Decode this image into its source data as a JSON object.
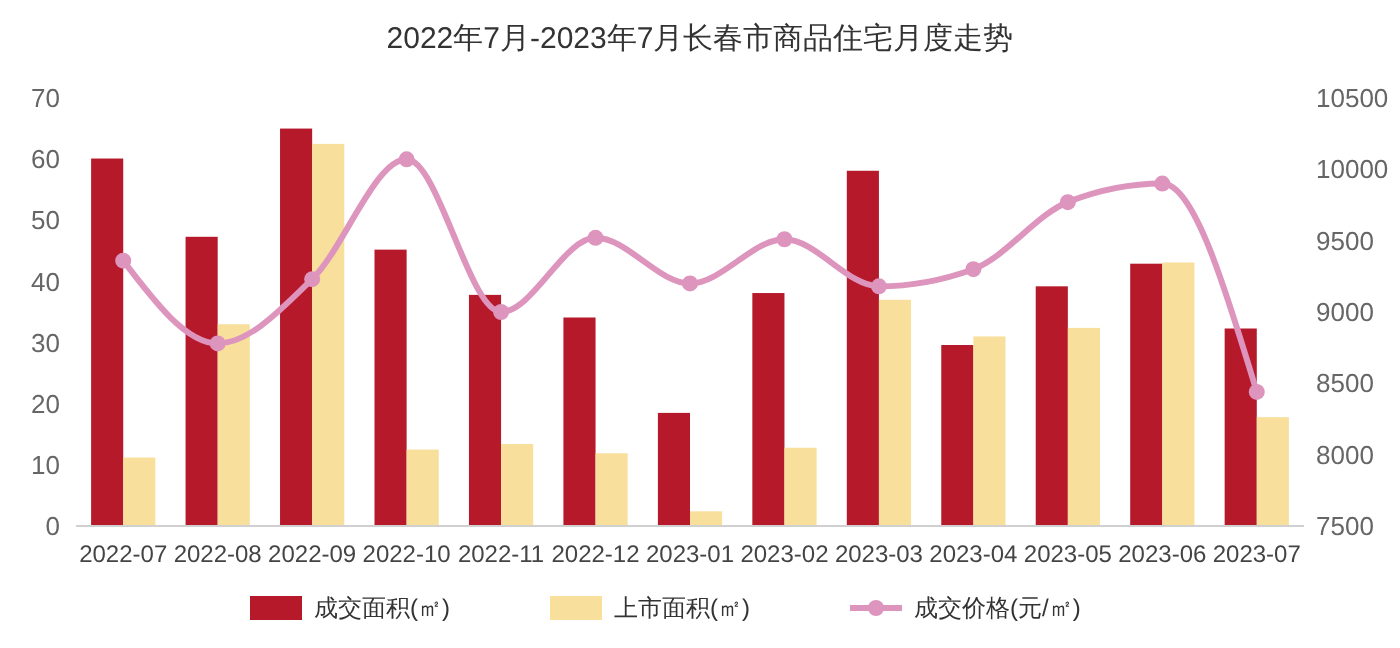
{
  "chart_data": {
    "type": "bar",
    "title": "2022年7月-2023年7月长春市商品住宅月度走势",
    "categories": [
      "2022-07",
      "2022-08",
      "2022-09",
      "2022-10",
      "2022-11",
      "2022-12",
      "2023-01",
      "2023-02",
      "2023-03",
      "2023-04",
      "2023-05",
      "2023-06",
      "2023-07"
    ],
    "series": [
      {
        "name": "成交面积(㎡)",
        "color": "#b5192a",
        "values": [
          60.1,
          47.3,
          65,
          45.2,
          37.8,
          34.1,
          18.5,
          38.1,
          58.1,
          29.6,
          39.2,
          42.9,
          32.3
        ]
      },
      {
        "name": "上市面积(㎡)",
        "color": "#f9df9c",
        "values": [
          11.2,
          33,
          62.5,
          12.5,
          13.4,
          11.9,
          2.4,
          12.8,
          37,
          31,
          32.4,
          43.1,
          17.8
        ]
      },
      {
        "name": "成交价格(元/㎡)",
        "type": "line",
        "axis": "y2",
        "color": "#dd94bd",
        "marker": "circle",
        "values": [
          9360,
          8780,
          9230,
          10070,
          9000,
          9520,
          9200,
          9510,
          9180,
          9300,
          9770,
          9900,
          8440
        ]
      }
    ],
    "ylim": [
      0,
      70
    ],
    "yticks": [
      0,
      10,
      20,
      30,
      40,
      50,
      60,
      70
    ],
    "y2lim": [
      7500,
      10500
    ],
    "y2ticks": [
      7500,
      8000,
      8500,
      9000,
      9500,
      10000,
      10500
    ],
    "grid": false,
    "legend": "bottom"
  }
}
